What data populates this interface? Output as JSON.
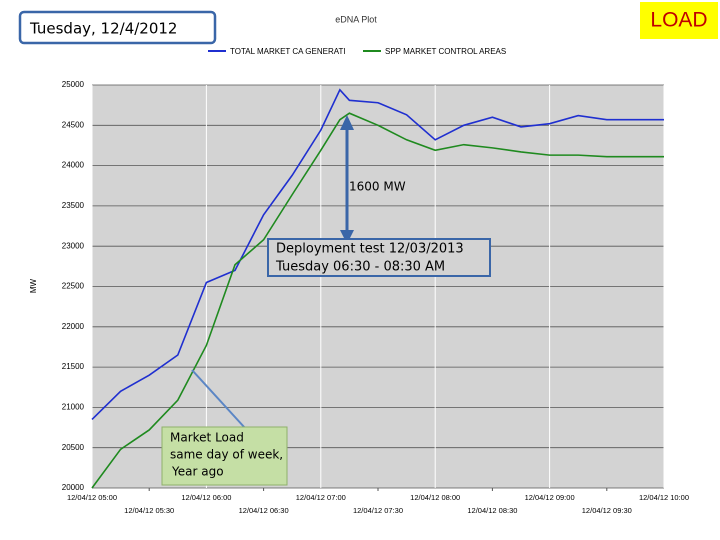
{
  "header": {
    "date": "Tuesday, 12/4/2012",
    "badge": "LOAD"
  },
  "chart_data": {
    "type": "line",
    "title": "eDNA Plot",
    "y_label": "MW",
    "x": [
      5,
      5.25,
      5.5,
      5.75,
      6,
      6.25,
      6.5,
      6.75,
      7,
      7.1667,
      7.25,
      7.5,
      7.75,
      8,
      8.25,
      8.5,
      8.75,
      9,
      9.25,
      9.5,
      9.75,
      10
    ],
    "series": [
      {
        "name": "TOTAL MARKET CA GENERATI",
        "color": "#1f2fd0",
        "values": [
          20850,
          21200,
          21400,
          21650,
          22550,
          22700,
          23390,
          23880,
          24440,
          24940,
          24810,
          24780,
          24630,
          24320,
          24500,
          24600,
          24480,
          24520,
          24620,
          24570,
          24570,
          24570
        ]
      },
      {
        "name": "SPP MARKET CONTROL AREAS",
        "color": "#1f8a1f",
        "values": [
          20000,
          20480,
          20720,
          21090,
          21770,
          22770,
          23080,
          23640,
          24190,
          24570,
          24650,
          24500,
          24320,
          24190,
          24260,
          24220,
          24170,
          24130,
          24130,
          24110,
          24110,
          24110
        ]
      }
    ],
    "xlim": [
      5,
      10
    ],
    "xticks": [
      {
        "value": 5,
        "label": "12/04/12 05:00"
      },
      {
        "value": 5.5,
        "label": "12/04/12 05:30"
      },
      {
        "value": 6,
        "label": "12/04/12 06:00"
      },
      {
        "value": 6.5,
        "label": "12/04/12 06:30"
      },
      {
        "value": 7,
        "label": "12/04/12 07:00"
      },
      {
        "value": 7.5,
        "label": "12/04/12 07:30"
      },
      {
        "value": 8,
        "label": "12/04/12 08:00"
      },
      {
        "value": 8.5,
        "label": "12/04/12 08:30"
      },
      {
        "value": 9,
        "label": "12/04/12 09:00"
      },
      {
        "value": 9.5,
        "label": "12/04/12 09:30"
      },
      {
        "value": 10,
        "label": "12/04/12 10:00"
      }
    ],
    "ylim": [
      20000,
      25000
    ],
    "yticks": [
      20000,
      20500,
      21000,
      21500,
      22000,
      22500,
      23000,
      23500,
      24000,
      24500,
      25000
    ],
    "grid": true,
    "annotations": {
      "gap": "1600 MW",
      "test": [
        "Deployment test   12/03/2013",
        "Tuesday     06:30  -  08:30 AM"
      ],
      "market": [
        "Market Load",
        "same day  of week,",
        "Year ago"
      ]
    }
  }
}
